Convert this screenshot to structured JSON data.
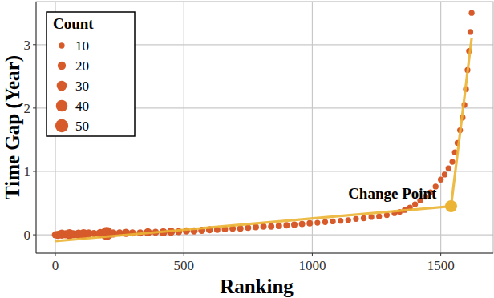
{
  "chart_data": {
    "type": "scatter",
    "x_label": "Ranking",
    "y_label": "Time Gap (Year)",
    "xlim": [
      -75,
      1704
    ],
    "ylim": [
      -0.29,
      3.68
    ],
    "xticks": [
      0,
      500,
      1000,
      1500
    ],
    "yticks": [
      0,
      1,
      2,
      3
    ],
    "grid": true,
    "legend": "top-left",
    "color": "#d65a2a",
    "x": [
      0,
      10,
      25,
      40,
      55,
      70,
      90,
      110,
      130,
      150,
      175,
      200,
      225,
      250,
      275,
      300,
      330,
      360,
      390,
      420,
      450,
      480,
      510,
      540,
      570,
      600,
      630,
      660,
      690,
      720,
      750,
      780,
      810,
      840,
      870,
      900,
      930,
      960,
      990,
      1020,
      1050,
      1080,
      1110,
      1140,
      1170,
      1200,
      1230,
      1260,
      1290,
      1320,
      1340,
      1360,
      1380,
      1400,
      1420,
      1440,
      1460,
      1480,
      1500,
      1515,
      1530,
      1545,
      1555,
      1565,
      1575,
      1585,
      1592,
      1598,
      1604,
      1610,
      1615,
      1620
    ],
    "values": [
      0,
      0,
      0.01,
      0.01,
      0.01,
      0.01,
      0.01,
      0.01,
      0.02,
      0.02,
      0.02,
      0.02,
      0.02,
      0.03,
      0.03,
      0.03,
      0.03,
      0.04,
      0.04,
      0.04,
      0.05,
      0.05,
      0.06,
      0.06,
      0.07,
      0.08,
      0.08,
      0.09,
      0.1,
      0.1,
      0.11,
      0.12,
      0.13,
      0.13,
      0.14,
      0.15,
      0.16,
      0.17,
      0.18,
      0.19,
      0.2,
      0.21,
      0.22,
      0.23,
      0.25,
      0.26,
      0.28,
      0.29,
      0.31,
      0.34,
      0.36,
      0.39,
      0.43,
      0.48,
      0.54,
      0.6,
      0.67,
      0.76,
      0.87,
      0.95,
      1.05,
      1.15,
      1.3,
      1.45,
      1.65,
      1.85,
      2.05,
      2.3,
      2.6,
      2.9,
      3.2,
      3.5
    ],
    "sizes": [
      15,
      20,
      25,
      20,
      30,
      20,
      25,
      30,
      20,
      15,
      25,
      50,
      20,
      15,
      20,
      15,
      15,
      20,
      15,
      20,
      20,
      15,
      15,
      15,
      15,
      15,
      12,
      12,
      12,
      12,
      12,
      12,
      12,
      12,
      12,
      12,
      12,
      12,
      12,
      10,
      10,
      10,
      10,
      10,
      10,
      10,
      10,
      10,
      10,
      10,
      10,
      10,
      10,
      10,
      10,
      10,
      10,
      10,
      10,
      10,
      10,
      10,
      10,
      10,
      10,
      10,
      10,
      10,
      10,
      10,
      10,
      10
    ],
    "fit": {
      "color": "#ebb434",
      "x": [
        0,
        1540,
        1620
      ],
      "values": [
        -0.1,
        0.45,
        3.1
      ]
    },
    "annotation": {
      "text": "Change Point",
      "x": 1540,
      "y": 0.45
    },
    "size_legend": {
      "title": "Count",
      "values": [
        10,
        20,
        30,
        40,
        50
      ]
    }
  }
}
